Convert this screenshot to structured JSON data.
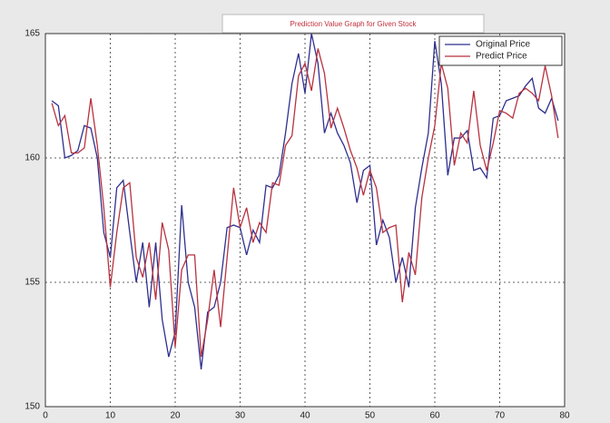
{
  "chart_data": {
    "type": "line",
    "title": "Prediction Value Graph for Given Stock",
    "x": [
      1,
      2,
      3,
      4,
      5,
      6,
      7,
      8,
      9,
      10,
      11,
      12,
      13,
      14,
      15,
      16,
      17,
      18,
      19,
      20,
      21,
      22,
      23,
      24,
      25,
      26,
      27,
      28,
      29,
      30,
      31,
      32,
      33,
      34,
      35,
      36,
      37,
      38,
      39,
      40,
      41,
      42,
      43,
      44,
      45,
      46,
      47,
      48,
      49,
      50,
      51,
      52,
      53,
      54,
      55,
      56,
      57,
      58,
      59,
      60,
      61,
      62,
      63,
      64,
      65,
      66,
      67,
      68,
      69,
      70,
      71,
      72,
      73,
      74,
      75,
      76,
      77,
      78,
      79
    ],
    "series": [
      {
        "name": "Original Price",
        "color": "#2f2f8f",
        "values": [
          162.3,
          162.1,
          160.0,
          160.1,
          160.3,
          161.3,
          161.2,
          160.0,
          157.0,
          156.0,
          158.8,
          159.1,
          157.0,
          155.0,
          156.6,
          154.0,
          156.6,
          153.5,
          152.0,
          153.0,
          158.1,
          155.0,
          154.0,
          151.5,
          153.8,
          154.0,
          155.0,
          157.2,
          157.3,
          157.2,
          156.1,
          157.1,
          156.6,
          158.9,
          158.8,
          159.3,
          161.0,
          163.0,
          164.2,
          162.6,
          165.0,
          163.8,
          161.0,
          161.8,
          161.0,
          160.5,
          159.8,
          158.2,
          159.5,
          159.7,
          156.5,
          157.5,
          156.8,
          155.0,
          156.0,
          154.8,
          158.0,
          159.6,
          161.0,
          164.7,
          163.0,
          159.3,
          160.8,
          160.8,
          161.1,
          159.5,
          159.6,
          159.2,
          161.6,
          161.7,
          162.3,
          162.4,
          162.5,
          162.9,
          163.2,
          162.0,
          161.8,
          162.4,
          161.5
        ]
      },
      {
        "name": "Predict Price",
        "color": "#b8323f",
        "values": [
          162.2,
          161.3,
          161.7,
          160.2,
          160.2,
          160.4,
          162.4,
          160.5,
          158.0,
          154.8,
          157.0,
          158.8,
          159.0,
          156.0,
          155.2,
          156.6,
          154.3,
          157.4,
          156.3,
          152.4,
          155.5,
          156.1,
          156.1,
          152.0,
          153.5,
          155.5,
          153.2,
          156.0,
          158.8,
          157.2,
          158.0,
          156.6,
          157.4,
          157.0,
          159.0,
          158.9,
          160.5,
          160.9,
          163.3,
          163.8,
          162.7,
          164.4,
          163.4,
          161.2,
          162.0,
          161.2,
          160.3,
          159.6,
          158.5,
          159.5,
          158.8,
          157.0,
          157.2,
          157.3,
          154.2,
          156.2,
          155.3,
          158.4,
          160.0,
          161.3,
          163.8,
          162.8,
          159.7,
          161.0,
          160.6,
          162.7,
          160.5,
          159.5,
          160.6,
          161.9,
          161.8,
          161.6,
          162.6,
          162.8,
          162.6,
          162.3,
          163.7,
          162.5,
          160.8
        ]
      }
    ],
    "xlim": [
      0,
      80
    ],
    "xticks": [
      0,
      10,
      20,
      30,
      40,
      50,
      60,
      70,
      80
    ],
    "ylim": [
      150,
      165
    ],
    "yticks": [
      150,
      155,
      160,
      165
    ],
    "grid": true,
    "legend": "upper right"
  }
}
